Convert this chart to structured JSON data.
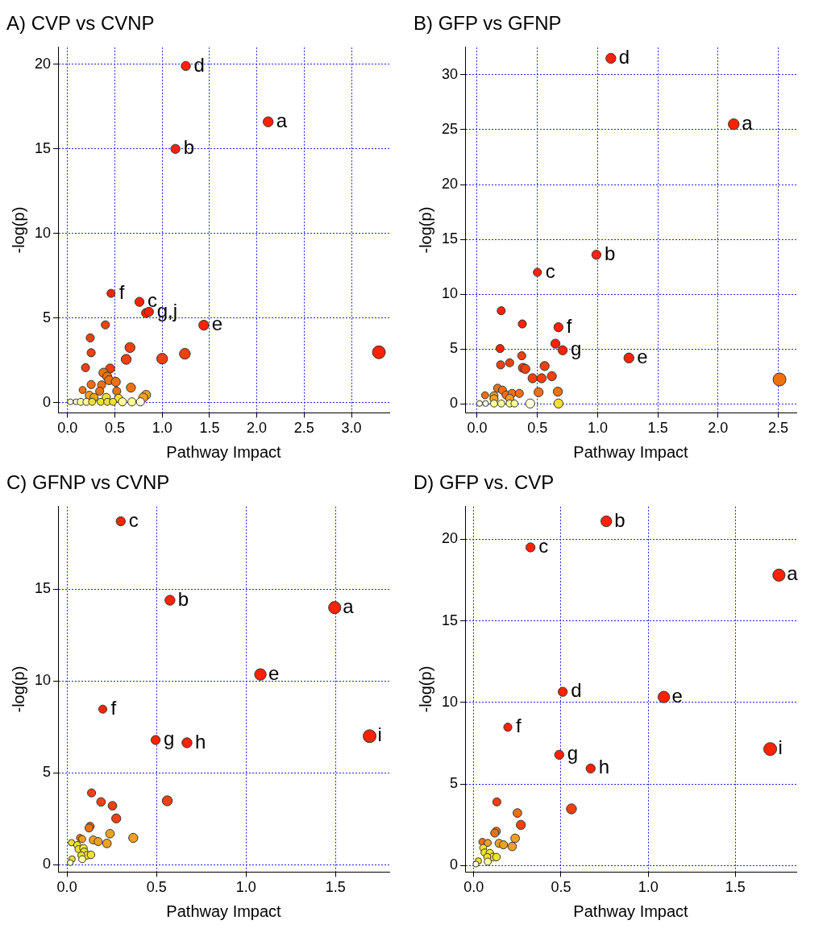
{
  "chart_data": [
    {
      "type": "bubble",
      "title": "A) CVP vs CVNP",
      "xlabel": "Pathway Impact",
      "ylabel": "-log(p)",
      "grid": true,
      "legend": false,
      "xlim": [
        -0.1,
        3.4
      ],
      "ylim": [
        -0.6,
        21
      ],
      "xticks": [
        {
          "value": 0,
          "label": "0.0"
        },
        {
          "value": 0.5,
          "label": "0.5"
        },
        {
          "value": 1,
          "label": "1.0"
        },
        {
          "value": 1.5,
          "label": "1.5"
        },
        {
          "value": 2,
          "label": "2.0"
        },
        {
          "value": 2.5,
          "label": "2.5"
        },
        {
          "value": 3,
          "label": "3.0"
        }
      ],
      "yticks": [
        0,
        5,
        10,
        15,
        20
      ],
      "x": [
        1.25,
        2.12,
        1.14,
        0.46,
        0.76,
        0.83,
        0.86,
        1.44,
        3.29,
        1.24,
        1.0,
        0.66,
        0.62,
        0.4,
        0.24,
        0.25,
        0.19,
        0.45,
        0.38,
        0.42,
        0.44,
        0.51,
        0.67,
        0.25,
        0.36,
        0.16,
        0.34,
        0.52,
        0.83,
        0.8,
        0.23,
        0.28,
        0.41,
        0.54,
        0.03,
        0.09,
        0.14,
        0.2,
        0.26,
        0.35,
        0.42,
        0.48,
        0.58,
        0.68,
        0.77
      ],
      "values": [
        19.9,
        16.6,
        15.0,
        6.46,
        5.96,
        5.3,
        5.37,
        4.58,
        2.98,
        2.89,
        2.6,
        3.26,
        2.56,
        4.6,
        3.83,
        2.95,
        2.07,
        2.02,
        1.77,
        1.54,
        1.33,
        1.23,
        0.89,
        1.07,
        1.05,
        0.75,
        0.68,
        0.68,
        0.46,
        0.3,
        0.44,
        0.31,
        0.31,
        0.26,
        0.05,
        0.05,
        0.05,
        0.05,
        0.05,
        0.05,
        0.05,
        0.05,
        0.05,
        0.05,
        0.05
      ],
      "sizes": [
        0.5,
        0.6,
        0.5,
        0.4,
        0.5,
        0.5,
        0.5,
        0.6,
        1,
        0.7,
        0.7,
        0.6,
        0.6,
        0.4,
        0.4,
        0.4,
        0.4,
        0.5,
        0.5,
        0.5,
        0.5,
        0.5,
        0.5,
        0.4,
        0.4,
        0.3,
        0.4,
        0.4,
        0.5,
        0.5,
        0.4,
        0.4,
        0.4,
        0.4,
        0.2,
        0.2,
        0.3,
        0.3,
        0.3,
        0.3,
        0.3,
        0.3,
        0.4,
        0.4,
        0.4
      ],
      "colors": [
        "#ff2200",
        "#ff2200",
        "#ff2200",
        "#ff2200",
        "#ff2200",
        "#ff2200",
        "#ff2200",
        "#ff2200",
        "#ff2200",
        "#f04010",
        "#f04010",
        "#f04010",
        "#f04010",
        "#f04010",
        "#f04010",
        "#f04010",
        "#f04010",
        "#f04010",
        "#f07010",
        "#f07010",
        "#f07010",
        "#f07010",
        "#f07010",
        "#f07010",
        "#f07010",
        "#f07010",
        "#f07010",
        "#f07010",
        "#f0a020",
        "#f0a020",
        "#f0a020",
        "#f0a020",
        "#f0e030",
        "#f0e030",
        "#ffffe0",
        "#ffffe0",
        "#ffff99",
        "#ffff99",
        "#f0e030",
        "#f0e030",
        "#f0e030",
        "#f0e030",
        "#ffff99",
        "#ffff99",
        "#ffffe0"
      ],
      "annotations": [
        {
          "text": "d",
          "x": 1.25,
          "y": 19.9
        },
        {
          "text": "a",
          "x": 2.12,
          "y": 16.6
        },
        {
          "text": "b",
          "x": 1.14,
          "y": 15.0
        },
        {
          "text": "f",
          "x": 0.46,
          "y": 6.46
        },
        {
          "text": "c",
          "x": 0.76,
          "y": 5.96
        },
        {
          "text": "g,j",
          "x": 0.86,
          "y": 5.37
        },
        {
          "text": "e",
          "x": 1.44,
          "y": 4.58
        }
      ]
    },
    {
      "type": "bubble",
      "title": "B) GFP vs GFNP",
      "xlabel": "Pathway Impact",
      "ylabel": "-log(p)",
      "grid": true,
      "legend": false,
      "xlim": [
        -0.1,
        2.65
      ],
      "ylim": [
        -0.8,
        32.5
      ],
      "xticks": [
        {
          "value": 0,
          "label": "0.0"
        },
        {
          "value": 0.5,
          "label": "0.5"
        },
        {
          "value": 1,
          "label": "1.0"
        },
        {
          "value": 1.5,
          "label": "1.5"
        },
        {
          "value": 2,
          "label": "2.0"
        },
        {
          "value": 2.5,
          "label": "2.5"
        }
      ],
      "yticks": [
        0,
        5,
        10,
        15,
        20,
        25,
        30
      ],
      "x": [
        1.11,
        2.13,
        0.99,
        0.5,
        0.2,
        0.375,
        0.675,
        0.19,
        0.65,
        0.71,
        1.26,
        0.195,
        0.27,
        0.37,
        0.38,
        0.4,
        0.56,
        0.46,
        0.535,
        0.62,
        2.51,
        0.51,
        0.67,
        0.17,
        0.21,
        0.066,
        0.14,
        0.24,
        0.29,
        0.35,
        0.14,
        0.27,
        0.02,
        0.07,
        0.14,
        0.2,
        0.27,
        0.31,
        0.44,
        0.675
      ],
      "values": [
        31.5,
        25.5,
        13.6,
        12.0,
        8.5,
        7.3,
        7.0,
        5.06,
        5.5,
        4.9,
        4.2,
        3.57,
        3.76,
        4.4,
        3.3,
        3.2,
        3.46,
        2.35,
        2.35,
        2.54,
        2.24,
        1.08,
        1.13,
        1.44,
        1.27,
        0.8,
        0.75,
        0.83,
        0.97,
        0.97,
        0.48,
        0.52,
        0.05,
        0.05,
        0.05,
        0.05,
        0.05,
        0.05,
        0.05,
        0.05
      ],
      "sizes": [
        0.6,
        0.7,
        0.5,
        0.4,
        0.4,
        0.4,
        0.5,
        0.4,
        0.5,
        0.5,
        0.6,
        0.4,
        0.4,
        0.4,
        0.5,
        0.5,
        0.5,
        0.5,
        0.5,
        0.5,
        1,
        0.5,
        0.5,
        0.4,
        0.4,
        0.3,
        0.4,
        0.4,
        0.4,
        0.4,
        0.4,
        0.4,
        0.2,
        0.2,
        0.3,
        0.3,
        0.3,
        0.3,
        0.5,
        0.5
      ],
      "colors": [
        "#ff2200",
        "#ff2200",
        "#ff2200",
        "#ff2200",
        "#ff2200",
        "#ff2200",
        "#ff2200",
        "#ff2200",
        "#ff2200",
        "#ff2200",
        "#ff2200",
        "#f04010",
        "#f04010",
        "#f04010",
        "#f04010",
        "#f04010",
        "#f04010",
        "#f04010",
        "#f04010",
        "#f04010",
        "#f07010",
        "#f07010",
        "#f07010",
        "#f07010",
        "#f07010",
        "#f07010",
        "#f0a020",
        "#f07010",
        "#f07010",
        "#f07010",
        "#f0a020",
        "#f0a020",
        "#ffffe0",
        "#ffffe0",
        "#ffff99",
        "#ffff99",
        "#ffff99",
        "#ffff99",
        "#ffffe0",
        "#f0e030"
      ],
      "annotations": [
        {
          "text": "d",
          "x": 1.11,
          "y": 31.5
        },
        {
          "text": "a",
          "x": 2.13,
          "y": 25.5
        },
        {
          "text": "b",
          "x": 0.99,
          "y": 13.6
        },
        {
          "text": "c",
          "x": 0.5,
          "y": 12.0
        },
        {
          "text": "f",
          "x": 0.675,
          "y": 7.0
        },
        {
          "text": "g",
          "x": 0.71,
          "y": 4.9
        },
        {
          "text": "e",
          "x": 1.26,
          "y": 4.2
        }
      ]
    },
    {
      "type": "bubble",
      "title": "C) GFNP vs CVNP",
      "xlabel": "Pathway Impact",
      "ylabel": "-log(p)",
      "grid": true,
      "legend": false,
      "xlim": [
        -0.05,
        1.8
      ],
      "ylim": [
        -0.4,
        19.5
      ],
      "xticks": [
        {
          "value": 0,
          "label": "0.0"
        },
        {
          "value": 0.5,
          "label": "0.5"
        },
        {
          "value": 1,
          "label": "1.0"
        },
        {
          "value": 1.5,
          "label": "1.5"
        }
      ],
      "yticks": [
        0,
        5,
        10,
        15
      ],
      "x": [
        0.3,
        0.575,
        1.495,
        1.08,
        1.69,
        0.2,
        0.495,
        0.67,
        0.56,
        0.137,
        0.19,
        0.254,
        0.275,
        0.129,
        0.123,
        0.24,
        0.37,
        0.073,
        0.085,
        0.147,
        0.174,
        0.223,
        0.025,
        0.057,
        0.064,
        0.092,
        0.096,
        0.11,
        0.134,
        0.08,
        0.085,
        0.028,
        0.018
      ],
      "values": [
        18.7,
        14.4,
        14.0,
        10.36,
        7.0,
        8.47,
        6.79,
        6.64,
        3.48,
        3.91,
        3.42,
        3.21,
        2.52,
        2.09,
        2.0,
        1.69,
        1.46,
        1.46,
        1.4,
        1.35,
        1.26,
        1.16,
        1.2,
        1.07,
        0.85,
        0.9,
        0.7,
        0.51,
        0.54,
        0.51,
        0.3,
        0.31,
        0.11
      ],
      "sizes": [
        0.5,
        0.6,
        0.9,
        0.8,
        1,
        0.4,
        0.5,
        0.6,
        0.6,
        0.4,
        0.45,
        0.45,
        0.5,
        0.4,
        0.4,
        0.45,
        0.5,
        0.3,
        0.3,
        0.4,
        0.4,
        0.45,
        0.25,
        0.3,
        0.3,
        0.35,
        0.35,
        0.35,
        0.35,
        0.3,
        0.3,
        0.25,
        0.2
      ],
      "colors": [
        "#ff2200",
        "#ff2200",
        "#ff2200",
        "#ff2200",
        "#ff2200",
        "#ff2200",
        "#ff2200",
        "#ff2200",
        "#f04010",
        "#f04010",
        "#f04010",
        "#f04010",
        "#f04010",
        "#f07010",
        "#f07010",
        "#f0a020",
        "#f0a020",
        "#f07010",
        "#f0a020",
        "#f0a020",
        "#f0a020",
        "#f0a020",
        "#f0e030",
        "#f0e030",
        "#f0e030",
        "#f0e030",
        "#f0e030",
        "#f0e030",
        "#f0e030",
        "#f0e030",
        "#ffff99",
        "#f0e030",
        "#ffffe0"
      ],
      "annotations": [
        {
          "text": "c",
          "x": 0.3,
          "y": 18.7
        },
        {
          "text": "b",
          "x": 0.575,
          "y": 14.4
        },
        {
          "text": "a",
          "x": 1.495,
          "y": 14.0
        },
        {
          "text": "e",
          "x": 1.08,
          "y": 10.36
        },
        {
          "text": "i",
          "x": 1.69,
          "y": 7.0
        },
        {
          "text": "f",
          "x": 0.2,
          "y": 8.47
        },
        {
          "text": "g",
          "x": 0.495,
          "y": 6.79
        },
        {
          "text": "h",
          "x": 0.67,
          "y": 6.64
        }
      ]
    },
    {
      "type": "bubble",
      "title": "D) GFP vs. CVP",
      "xlabel": "Pathway Impact",
      "ylabel": "-log(p)",
      "grid": true,
      "legend": false,
      "xlim": [
        -0.05,
        1.85
      ],
      "ylim": [
        -0.4,
        22
      ],
      "xticks": [
        {
          "value": 0,
          "label": "0.0"
        },
        {
          "value": 0.5,
          "label": "0.5"
        },
        {
          "value": 1,
          "label": "1.0"
        },
        {
          "value": 1.5,
          "label": "1.5"
        }
      ],
      "yticks": [
        0,
        5,
        10,
        15,
        20
      ],
      "x": [
        0.76,
        0.325,
        1.75,
        1.09,
        0.51,
        1.7,
        0.195,
        0.49,
        0.67,
        0.56,
        0.132,
        0.25,
        0.27,
        0.129,
        0.12,
        0.237,
        0.22,
        0.145,
        0.17,
        0.049,
        0.08,
        0.054,
        0.061,
        0.092,
        0.11,
        0.13,
        0.077,
        0.08,
        0.026,
        0.012
      ],
      "values": [
        21.1,
        19.5,
        17.8,
        10.33,
        10.65,
        7.14,
        8.48,
        6.79,
        5.95,
        3.47,
        3.9,
        3.22,
        2.49,
        2.1,
        1.99,
        1.67,
        1.17,
        1.36,
        1.27,
        1.45,
        1.39,
        1.08,
        0.8,
        0.76,
        0.52,
        0.52,
        0.52,
        0.24,
        0.28,
        0.09
      ],
      "sizes": [
        0.7,
        0.5,
        0.9,
        0.8,
        0.5,
        1,
        0.4,
        0.5,
        0.5,
        0.6,
        0.4,
        0.45,
        0.5,
        0.4,
        0.4,
        0.45,
        0.45,
        0.4,
        0.4,
        0.3,
        0.3,
        0.3,
        0.3,
        0.35,
        0.35,
        0.35,
        0.3,
        0.3,
        0.25,
        0.2
      ],
      "colors": [
        "#ff2200",
        "#ff2200",
        "#ff2200",
        "#ff2200",
        "#ff2200",
        "#ff2200",
        "#ff2200",
        "#ff2200",
        "#ff2200",
        "#f04010",
        "#f04010",
        "#f07010",
        "#f04010",
        "#f07010",
        "#f07010",
        "#f0a020",
        "#f0a020",
        "#f0a020",
        "#f0a020",
        "#f07010",
        "#f0a020",
        "#f0e030",
        "#f0e030",
        "#f0e030",
        "#f0e030",
        "#f0e030",
        "#f0e030",
        "#ffff99",
        "#f0e030",
        "#ffffe0"
      ],
      "annotations": [
        {
          "text": "b",
          "x": 0.76,
          "y": 21.1
        },
        {
          "text": "c",
          "x": 0.325,
          "y": 19.5
        },
        {
          "text": "a",
          "x": 1.75,
          "y": 17.8
        },
        {
          "text": "e",
          "x": 1.09,
          "y": 10.33
        },
        {
          "text": "d",
          "x": 0.51,
          "y": 10.65
        },
        {
          "text": "i",
          "x": 1.7,
          "y": 7.14
        },
        {
          "text": "f",
          "x": 0.195,
          "y": 8.48
        },
        {
          "text": "g",
          "x": 0.49,
          "y": 6.79
        },
        {
          "text": "h",
          "x": 0.67,
          "y": 5.95
        }
      ]
    }
  ]
}
